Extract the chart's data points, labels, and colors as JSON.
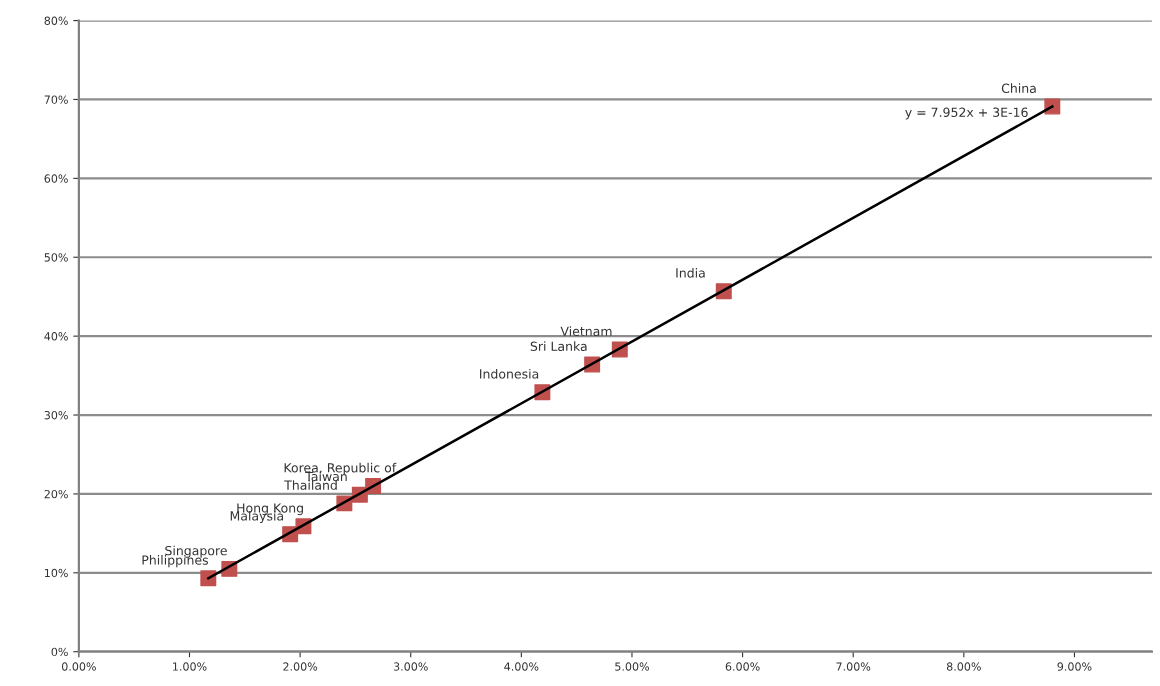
{
  "chart_data": {
    "type": "scatter",
    "x": [
      1.17,
      1.36,
      1.91,
      2.03,
      2.4,
      2.54,
      2.66,
      4.19,
      4.64,
      4.89,
      5.83,
      8.8
    ],
    "series": [
      {
        "color": "#c0504d",
        "marker": "square",
        "values": [
          9.3,
          10.5,
          14.9,
          15.9,
          18.8,
          19.9,
          21.0,
          32.9,
          36.4,
          38.3,
          45.7,
          69.1
        ],
        "value_labels": [
          "Philippines",
          "Singapore",
          "Malaysia",
          "Hong Kong",
          "Thailand",
          "Taiwan",
          "Korea, Republic of",
          "Indonesia",
          "Sri Lanka",
          "Vietnam",
          "India",
          "China"
        ]
      },
      {
        "type": "line",
        "color": "#000000",
        "x": [
          1.17,
          8.8
        ],
        "values": [
          9.3,
          69.1
        ]
      }
    ],
    "annotations": [
      "y = 7.952x + 3E-16"
    ],
    "xlim": [
      0,
      9.7
    ],
    "ylim": [
      0,
      80
    ],
    "xticks": [
      {
        "value": 0,
        "label": "0.00%"
      },
      {
        "value": 1,
        "label": "1.00%"
      },
      {
        "value": 2,
        "label": "2.00%"
      },
      {
        "value": 3,
        "label": "3.00%"
      },
      {
        "value": 4,
        "label": "4.00%"
      },
      {
        "value": 5,
        "label": "5.00%"
      },
      {
        "value": 6,
        "label": "6.00%"
      },
      {
        "value": 7,
        "label": "7.00%"
      },
      {
        "value": 8,
        "label": "8.00%"
      },
      {
        "value": 9,
        "label": "9.00%"
      }
    ],
    "yticks": [
      {
        "value": 0,
        "label": "0%"
      },
      {
        "value": 10,
        "label": "10%"
      },
      {
        "value": 20,
        "label": "20%"
      },
      {
        "value": 30,
        "label": "30%"
      },
      {
        "value": 40,
        "label": "40%"
      },
      {
        "value": 50,
        "label": "50%"
      },
      {
        "value": 60,
        "label": "60%"
      },
      {
        "value": 70,
        "label": "70%"
      },
      {
        "value": 80,
        "label": "80%"
      }
    ],
    "grid": "y"
  }
}
